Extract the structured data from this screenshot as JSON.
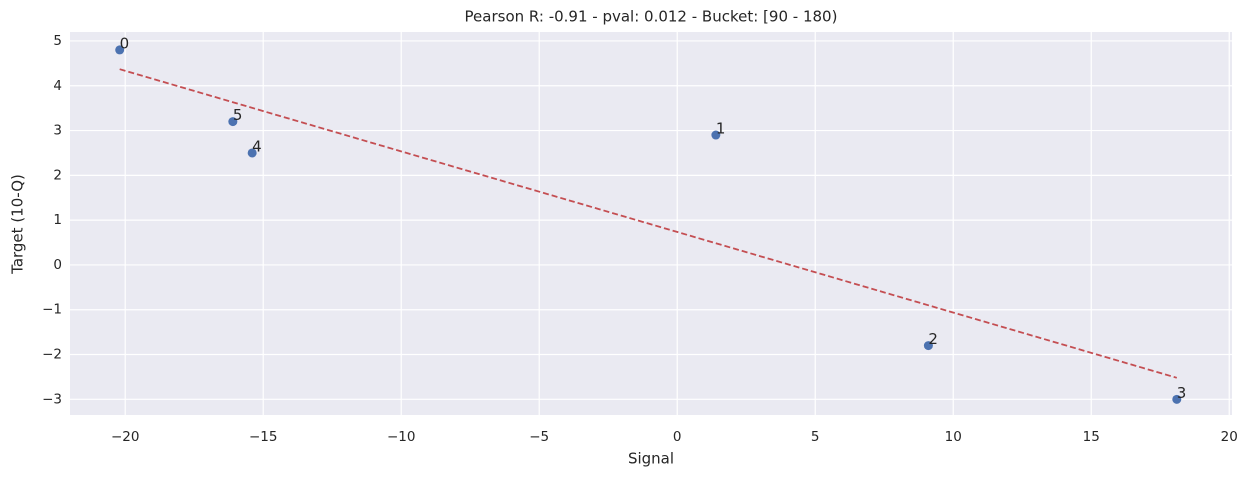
{
  "chart_data": {
    "type": "scatter",
    "title": "Pearson R: -0.91 - pval: 0.012 - Bucket: [90 - 180)",
    "x_label": "Signal",
    "y_label": "Target (10-Q)",
    "xlim": [
      -22.0,
      20.1
    ],
    "ylim": [
      -3.35,
      5.2
    ],
    "xticks": [
      {
        "value": -20,
        "label": "−20"
      },
      {
        "value": -15,
        "label": "−15"
      },
      {
        "value": -10,
        "label": "−10"
      },
      {
        "value": -5,
        "label": "−5"
      },
      0,
      5,
      10,
      15,
      20
    ],
    "yticks": [
      {
        "value": -3,
        "label": "−3"
      },
      {
        "value": -2,
        "label": "−2"
      },
      {
        "value": -1,
        "label": "−1"
      },
      0,
      1,
      2,
      3,
      4,
      5
    ],
    "grid": true,
    "series": [
      {
        "color": "#4c72b0",
        "x": [
          -20.2,
          1.4,
          9.1,
          18.1,
          -15.4,
          -16.1
        ],
        "values": [
          4.8,
          2.9,
          -1.8,
          -3.0,
          2.5,
          3.2
        ],
        "point_labels": [
          "0",
          "1",
          "2",
          "3",
          "4",
          "5"
        ]
      }
    ],
    "fit": {
      "color": "#c44e52",
      "dashed": true,
      "x": [
        -20.2,
        18.1
      ],
      "values": [
        4.37,
        -2.52
      ]
    }
  }
}
